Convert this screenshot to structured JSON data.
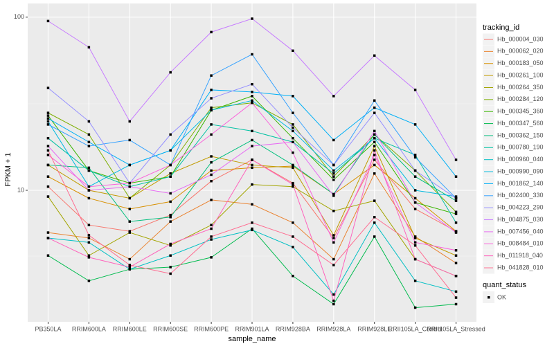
{
  "chart_data": {
    "type": "line",
    "x_label": "sample_name",
    "y_label": "FPKM + 1",
    "legend_title": "tracking_id",
    "status_legend_title": "quant_status",
    "status_label": "OK",
    "log_y": true,
    "grid": true,
    "legend_position": "right",
    "ylim": [
      1.74,
      120
    ],
    "yticks": [
      10,
      100
    ],
    "categories": [
      "PB350LA",
      "RRIM600LA",
      "RRIM600LE",
      "RRIM600SE",
      "RRIM600PE",
      "RRIM901LA",
      "RRIM928BA",
      "RRIM928LA",
      "RRIM928LE",
      "RRII105LA_Control",
      "RRII105LA_Stressed"
    ],
    "series": [
      {
        "name": "Hb_000004_030",
        "color": "#F8766D",
        "values": [
          10.5,
          6.3,
          5.8,
          7.2,
          11.3,
          15,
          11,
          5.3,
          15,
          7.8,
          5.8
        ]
      },
      {
        "name": "Hb_000062_020",
        "color": "#EA8331",
        "values": [
          5.7,
          5.3,
          4,
          6.6,
          8.8,
          8.3,
          6.5,
          4,
          12.5,
          5.4,
          3.8
        ]
      },
      {
        "name": "Hb_000183_050",
        "color": "#D89000",
        "values": [
          12,
          9,
          7.8,
          8.6,
          13,
          13.5,
          13.8,
          9.5,
          14,
          9,
          5.8
        ]
      },
      {
        "name": "Hb_000261_100",
        "color": "#C09B00",
        "values": [
          14,
          10,
          9,
          12.5,
          15.7,
          14,
          13.5,
          5.5,
          18,
          5.3,
          4.2
        ]
      },
      {
        "name": "Hb_000264_350",
        "color": "#A3A500",
        "values": [
          9.2,
          4.2,
          5.7,
          4.8,
          6.3,
          10.8,
          10.5,
          7.6,
          8.7,
          4,
          3.2
        ]
      },
      {
        "name": "Hb_000284_120",
        "color": "#7CAE00",
        "values": [
          28,
          21,
          9,
          14,
          30,
          32,
          24,
          12,
          21,
          13,
          7.5
        ]
      },
      {
        "name": "Hb_000345_360",
        "color": "#39B600",
        "values": [
          27,
          13,
          11,
          12,
          29,
          35,
          20,
          11.5,
          19,
          8.5,
          7.3
        ]
      },
      {
        "name": "Hb_000347_560",
        "color": "#00BB4E",
        "values": [
          4.2,
          3.0,
          3.5,
          3.6,
          4.1,
          6,
          3.2,
          2.2,
          5.4,
          2.1,
          2.2
        ]
      },
      {
        "name": "Hb_000362_150",
        "color": "#00BF7D",
        "values": [
          14,
          13.5,
          6.6,
          7,
          14.5,
          19.5,
          14,
          9.5,
          21,
          12,
          8.7
        ]
      },
      {
        "name": "Hb_000780_190",
        "color": "#00C1A3",
        "values": [
          20,
          13,
          10.5,
          12,
          24,
          22,
          19,
          12.5,
          20,
          16,
          6.5
        ]
      },
      {
        "name": "Hb_000960_040",
        "color": "#00BFC4",
        "values": [
          5.3,
          5.0,
          3.5,
          4.2,
          5.2,
          5.9,
          4.7,
          2.5,
          6.5,
          3,
          2.6
        ]
      },
      {
        "name": "Hb_000990_090",
        "color": "#00BAE0",
        "values": [
          25,
          10.5,
          14,
          17,
          29,
          33,
          22,
          13,
          20,
          10,
          9.2
        ]
      },
      {
        "name": "Hb_001862_140",
        "color": "#00B0F6",
        "values": [
          26,
          19,
          14,
          17,
          38,
          37,
          35,
          19.5,
          30,
          24,
          12
        ]
      },
      {
        "name": "Hb_002400_330",
        "color": "#35A2FF",
        "values": [
          24,
          18,
          19.5,
          14,
          46,
          61,
          28,
          14,
          33,
          15.5,
          9
        ]
      },
      {
        "name": "Hb_004223_290",
        "color": "#9590FF",
        "values": [
          39,
          25,
          11,
          21,
          34,
          41,
          23,
          14,
          28,
          13,
          9
        ]
      },
      {
        "name": "Hb_004875_030",
        "color": "#C77CFF",
        "values": [
          95,
          67,
          25,
          48,
          82,
          98,
          64,
          35,
          60,
          38,
          15
        ]
      },
      {
        "name": "Hb_007456_040",
        "color": "#E76BF3",
        "values": [
          18,
          10,
          10.5,
          9.6,
          12.3,
          18,
          19,
          9.3,
          22,
          8.5,
          5.7
        ]
      },
      {
        "name": "Hb_008484_010",
        "color": "#FA62DB",
        "values": [
          16,
          10.5,
          11,
          14,
          21,
          32,
          16.5,
          5,
          16,
          5,
          4.5
        ]
      },
      {
        "name": "Hb_011918_040",
        "color": "#FF62BC",
        "values": [
          5.3,
          4.1,
          3.6,
          4.9,
          6,
          15,
          10.8,
          2.3,
          17,
          4,
          3.2
        ]
      },
      {
        "name": "Hb_041828_010",
        "color": "#FF6C91",
        "values": [
          17,
          5.5,
          3.7,
          3.3,
          5.4,
          6.5,
          5.4,
          3.7,
          7,
          4.8,
          2.4
        ]
      }
    ]
  }
}
